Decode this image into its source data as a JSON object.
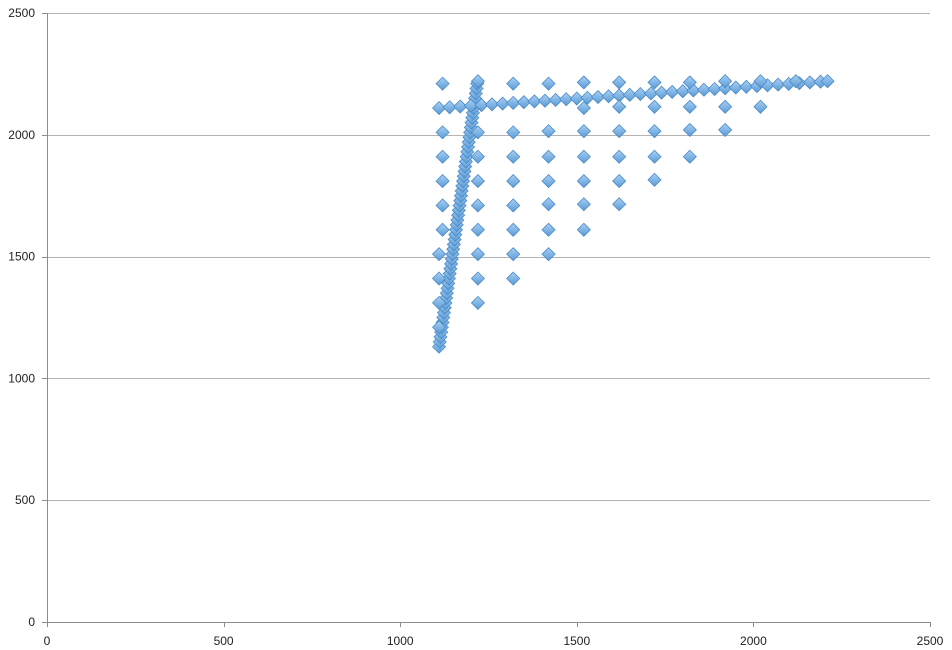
{
  "chart_data": {
    "type": "scatter",
    "title": "",
    "xlabel": "",
    "ylabel": "",
    "xlim": [
      0,
      2500
    ],
    "ylim": [
      0,
      2500
    ],
    "xticks": [
      0,
      500,
      1000,
      1500,
      2000,
      2500
    ],
    "yticks": [
      0,
      500,
      1000,
      1500,
      2000,
      2500
    ],
    "grid": "horizontal",
    "legend": "none",
    "marker": "diamond",
    "color": "#5b9bd5",
    "series": [
      {
        "points": [
          [
            1110,
            1130
          ],
          [
            1112,
            1150
          ],
          [
            1114,
            1170
          ],
          [
            1116,
            1190
          ],
          [
            1118,
            1210
          ],
          [
            1120,
            1230
          ],
          [
            1122,
            1250
          ],
          [
            1124,
            1270
          ],
          [
            1126,
            1290
          ],
          [
            1128,
            1310
          ],
          [
            1130,
            1330
          ],
          [
            1132,
            1350
          ],
          [
            1134,
            1370
          ],
          [
            1136,
            1390
          ],
          [
            1138,
            1410
          ],
          [
            1140,
            1430
          ],
          [
            1142,
            1450
          ],
          [
            1144,
            1470
          ],
          [
            1146,
            1490
          ],
          [
            1148,
            1510
          ],
          [
            1150,
            1530
          ],
          [
            1152,
            1550
          ],
          [
            1154,
            1570
          ],
          [
            1156,
            1590
          ],
          [
            1158,
            1610
          ],
          [
            1160,
            1630
          ],
          [
            1162,
            1650
          ],
          [
            1164,
            1670
          ],
          [
            1166,
            1690
          ],
          [
            1168,
            1710
          ],
          [
            1170,
            1730
          ],
          [
            1172,
            1750
          ],
          [
            1174,
            1770
          ],
          [
            1176,
            1790
          ],
          [
            1178,
            1810
          ],
          [
            1180,
            1830
          ],
          [
            1182,
            1850
          ],
          [
            1184,
            1870
          ],
          [
            1186,
            1890
          ],
          [
            1188,
            1910
          ],
          [
            1190,
            1930
          ],
          [
            1192,
            1950
          ],
          [
            1194,
            1970
          ],
          [
            1196,
            1990
          ],
          [
            1198,
            2010
          ],
          [
            1200,
            2030
          ],
          [
            1202,
            2050
          ],
          [
            1204,
            2070
          ],
          [
            1206,
            2090
          ],
          [
            1208,
            2110
          ],
          [
            1210,
            2130
          ],
          [
            1212,
            2150
          ],
          [
            1214,
            2170
          ],
          [
            1216,
            2190
          ],
          [
            1218,
            2210
          ],
          [
            1220,
            2220
          ],
          [
            1110,
            2110
          ],
          [
            1140,
            2113
          ],
          [
            1170,
            2116
          ],
          [
            1200,
            2119
          ],
          [
            1230,
            2122
          ],
          [
            1260,
            2125
          ],
          [
            1290,
            2128
          ],
          [
            1320,
            2131
          ],
          [
            1350,
            2134
          ],
          [
            1380,
            2137
          ],
          [
            1410,
            2140
          ],
          [
            1440,
            2143
          ],
          [
            1470,
            2146
          ],
          [
            1500,
            2149
          ],
          [
            1530,
            2152
          ],
          [
            1560,
            2155
          ],
          [
            1590,
            2158
          ],
          [
            1620,
            2161
          ],
          [
            1650,
            2164
          ],
          [
            1680,
            2167
          ],
          [
            1710,
            2170
          ],
          [
            1740,
            2173
          ],
          [
            1770,
            2176
          ],
          [
            1800,
            2179
          ],
          [
            1830,
            2182
          ],
          [
            1860,
            2185
          ],
          [
            1890,
            2188
          ],
          [
            1920,
            2191
          ],
          [
            1950,
            2194
          ],
          [
            1980,
            2197
          ],
          [
            2010,
            2200
          ],
          [
            2040,
            2203
          ],
          [
            2070,
            2206
          ],
          [
            2100,
            2209
          ],
          [
            2130,
            2212
          ],
          [
            2160,
            2215
          ],
          [
            2190,
            2218
          ],
          [
            2210,
            2220
          ],
          [
            1120,
            2210
          ],
          [
            1320,
            2210
          ],
          [
            1420,
            2210
          ],
          [
            1520,
            2215
          ],
          [
            1620,
            2215
          ],
          [
            1720,
            2215
          ],
          [
            1820,
            2215
          ],
          [
            1920,
            2220
          ],
          [
            2020,
            2220
          ],
          [
            2120,
            2220
          ],
          [
            1120,
            2010
          ],
          [
            1220,
            2010
          ],
          [
            1320,
            2010
          ],
          [
            1420,
            2015
          ],
          [
            1520,
            2015
          ],
          [
            1620,
            2015
          ],
          [
            1720,
            2015
          ],
          [
            1820,
            2020
          ],
          [
            1920,
            2020
          ],
          [
            1520,
            2110
          ],
          [
            1620,
            2115
          ],
          [
            1720,
            2115
          ],
          [
            1820,
            2115
          ],
          [
            1920,
            2115
          ],
          [
            2020,
            2115
          ],
          [
            1120,
            1910
          ],
          [
            1220,
            1910
          ],
          [
            1320,
            1910
          ],
          [
            1420,
            1910
          ],
          [
            1520,
            1910
          ],
          [
            1620,
            1910
          ],
          [
            1720,
            1910
          ],
          [
            1820,
            1910
          ],
          [
            1120,
            1810
          ],
          [
            1220,
            1810
          ],
          [
            1320,
            1810
          ],
          [
            1420,
            1810
          ],
          [
            1520,
            1810
          ],
          [
            1620,
            1810
          ],
          [
            1720,
            1815
          ],
          [
            1120,
            1710
          ],
          [
            1220,
            1710
          ],
          [
            1320,
            1710
          ],
          [
            1420,
            1715
          ],
          [
            1520,
            1715
          ],
          [
            1620,
            1715
          ],
          [
            1120,
            1610
          ],
          [
            1220,
            1610
          ],
          [
            1320,
            1610
          ],
          [
            1420,
            1610
          ],
          [
            1520,
            1610
          ],
          [
            1110,
            1510
          ],
          [
            1220,
            1510
          ],
          [
            1320,
            1510
          ],
          [
            1420,
            1510
          ],
          [
            1110,
            1410
          ],
          [
            1220,
            1410
          ],
          [
            1320,
            1410
          ],
          [
            1110,
            1310
          ],
          [
            1220,
            1310
          ],
          [
            1110,
            1210
          ]
        ]
      }
    ]
  }
}
